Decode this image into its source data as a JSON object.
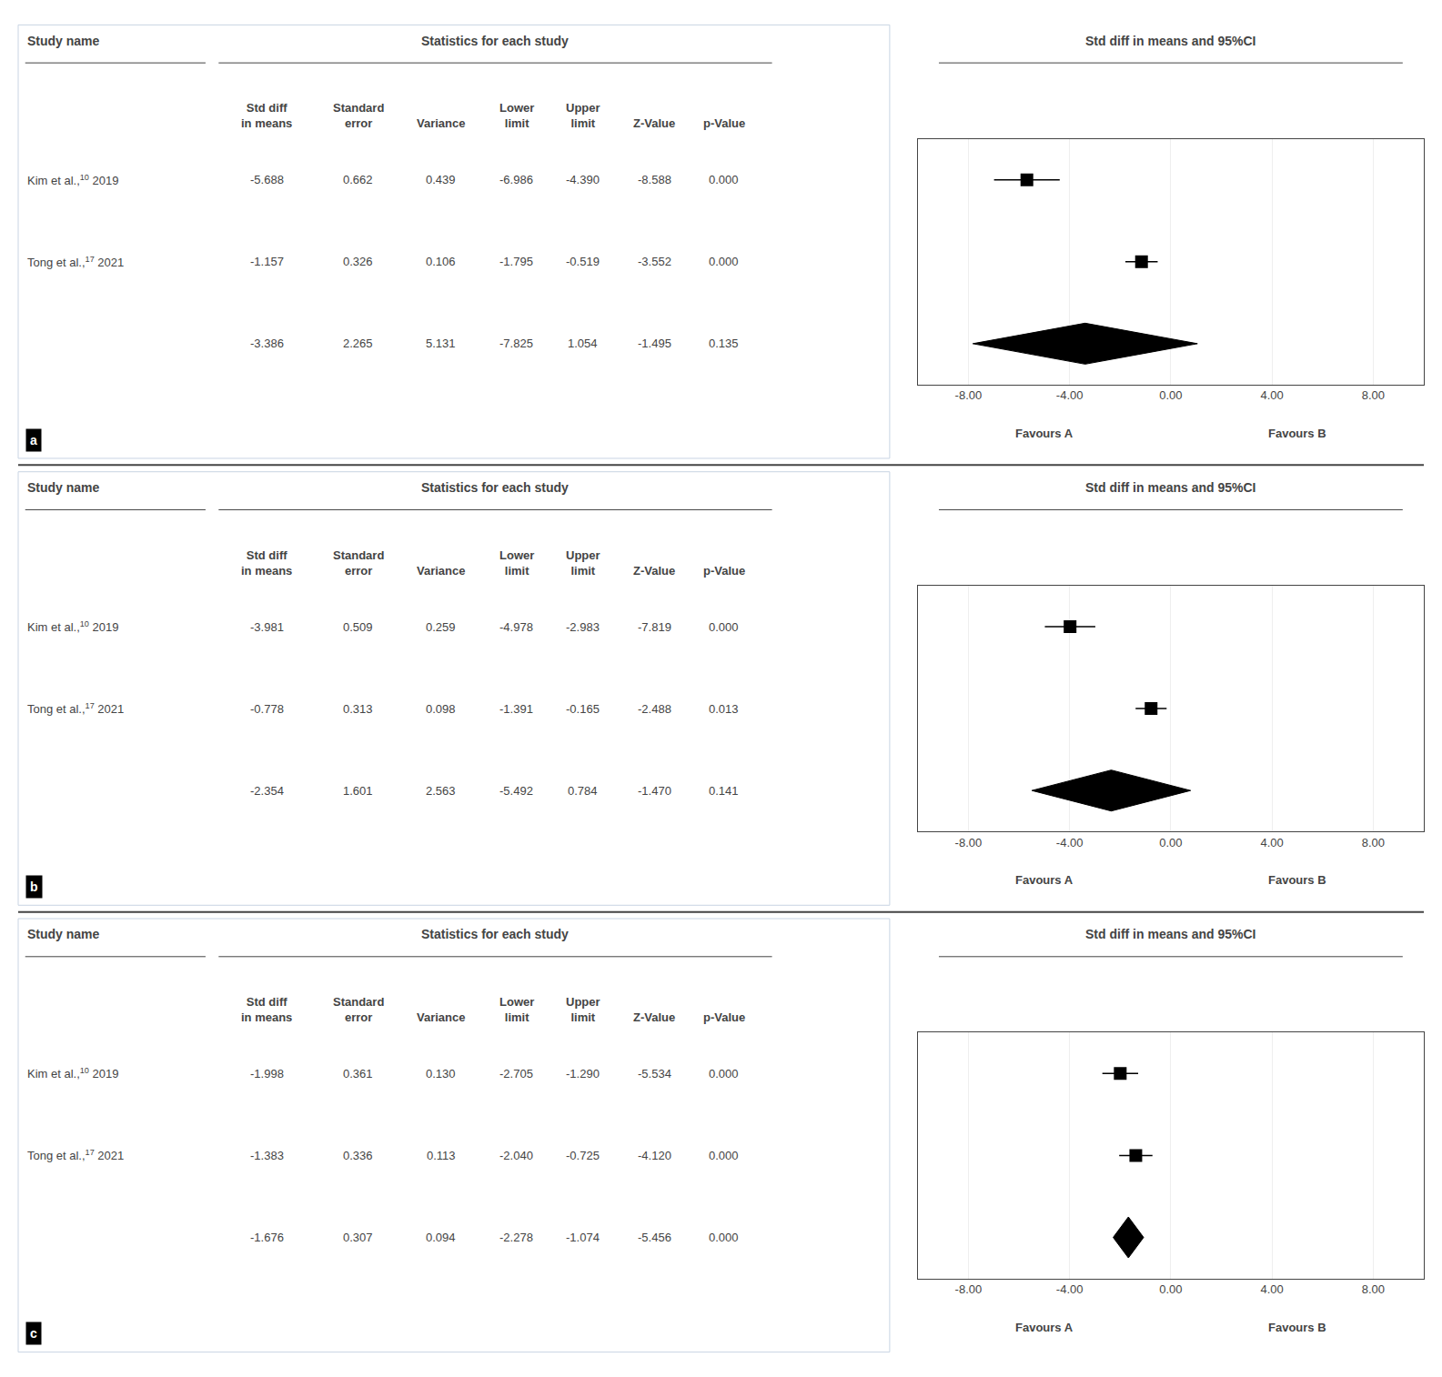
{
  "chart_data": [
    {
      "type": "forest",
      "label": "a",
      "title": "Std diff in means and 95%CI",
      "name_header": "Study name",
      "stats_header": "Statistics for each study",
      "column_headers": [
        [
          "Std diff",
          "in means"
        ],
        [
          "Standard",
          "error"
        ],
        [
          "Variance"
        ],
        [
          "Lower",
          "limit"
        ],
        [
          "Upper",
          "limit"
        ],
        [
          "Z-Value"
        ],
        [
          "p-Value"
        ]
      ],
      "rows": [
        {
          "type": "study",
          "name": "Kim et al.,",
          "sup": "10",
          "year": "2019",
          "std_diff": -5.688,
          "std_err": 0.662,
          "variance": 0.439,
          "lower": -6.986,
          "upper": -4.39,
          "z_value": -8.588,
          "p_value": 0.0
        },
        {
          "type": "study",
          "name": "Tong et al.,",
          "sup": "17",
          "year": "2021",
          "std_diff": -1.157,
          "std_err": 0.326,
          "variance": 0.106,
          "lower": -1.795,
          "upper": -0.519,
          "z_value": -3.552,
          "p_value": 0.0
        },
        {
          "type": "diamond",
          "std_diff": -3.386,
          "std_err": 2.265,
          "variance": 5.131,
          "lower": -7.825,
          "upper": 1.054,
          "z_value": -1.495,
          "p_value": 0.135
        }
      ],
      "annotations": [
        "Favours A",
        "Favours B"
      ],
      "xlim": [
        -10,
        10
      ],
      "xticks": [
        {
          "value": -8,
          "label": "-8.00"
        },
        {
          "value": -4,
          "label": "-4.00"
        },
        {
          "value": 0,
          "label": "0.00"
        },
        {
          "value": 4,
          "label": "4.00"
        },
        {
          "value": 8,
          "label": "8.00"
        }
      ],
      "grid": true,
      "color": "#000000"
    },
    {
      "type": "forest",
      "label": "b",
      "title": "Std diff in means and 95%CI",
      "name_header": "Study name",
      "stats_header": "Statistics for each study",
      "column_headers": [
        [
          "Std diff",
          "in means"
        ],
        [
          "Standard",
          "error"
        ],
        [
          "Variance"
        ],
        [
          "Lower",
          "limit"
        ],
        [
          "Upper",
          "limit"
        ],
        [
          "Z-Value"
        ],
        [
          "p-Value"
        ]
      ],
      "rows": [
        {
          "type": "study",
          "name": "Kim et al.,",
          "sup": "10",
          "year": "2019",
          "std_diff": -3.981,
          "std_err": 0.509,
          "variance": 0.259,
          "lower": -4.978,
          "upper": -2.983,
          "z_value": -7.819,
          "p_value": 0.0
        },
        {
          "type": "study",
          "name": "Tong et al.,",
          "sup": "17",
          "year": "2021",
          "std_diff": -0.778,
          "std_err": 0.313,
          "variance": 0.098,
          "lower": -1.391,
          "upper": -0.165,
          "z_value": -2.488,
          "p_value": 0.013
        },
        {
          "type": "diamond",
          "std_diff": -2.354,
          "std_err": 1.601,
          "variance": 2.563,
          "lower": -5.492,
          "upper": 0.784,
          "z_value": -1.47,
          "p_value": 0.141
        }
      ],
      "annotations": [
        "Favours A",
        "Favours B"
      ],
      "xlim": [
        -10,
        10
      ],
      "xticks": [
        {
          "value": -8,
          "label": "-8.00"
        },
        {
          "value": -4,
          "label": "-4.00"
        },
        {
          "value": 0,
          "label": "0.00"
        },
        {
          "value": 4,
          "label": "4.00"
        },
        {
          "value": 8,
          "label": "8.00"
        }
      ],
      "grid": true,
      "color": "#000000"
    },
    {
      "type": "forest",
      "label": "c",
      "title": "Std diff in means and 95%CI",
      "name_header": "Study name",
      "stats_header": "Statistics for each study",
      "column_headers": [
        [
          "Std diff",
          "in means"
        ],
        [
          "Standard",
          "error"
        ],
        [
          "Variance"
        ],
        [
          "Lower",
          "limit"
        ],
        [
          "Upper",
          "limit"
        ],
        [
          "Z-Value"
        ],
        [
          "p-Value"
        ]
      ],
      "rows": [
        {
          "type": "study",
          "name": "Kim et al.,",
          "sup": "10",
          "year": "2019",
          "std_diff": -1.998,
          "std_err": 0.361,
          "variance": 0.13,
          "lower": -2.705,
          "upper": -1.29,
          "z_value": -5.534,
          "p_value": 0.0
        },
        {
          "type": "study",
          "name": "Tong et al.,",
          "sup": "17",
          "year": "2021",
          "std_diff": -1.383,
          "std_err": 0.336,
          "variance": 0.113,
          "lower": -2.04,
          "upper": -0.725,
          "z_value": -4.12,
          "p_value": 0.0
        },
        {
          "type": "diamond",
          "std_diff": -1.676,
          "std_err": 0.307,
          "variance": 0.094,
          "lower": -2.278,
          "upper": -1.074,
          "z_value": -5.456,
          "p_value": 0.0
        }
      ],
      "annotations": [
        "Favours A",
        "Favours B"
      ],
      "xlim": [
        -10,
        10
      ],
      "xticks": [
        {
          "value": -8,
          "label": "-8.00"
        },
        {
          "value": -4,
          "label": "-4.00"
        },
        {
          "value": 0,
          "label": "0.00"
        },
        {
          "value": 4,
          "label": "4.00"
        },
        {
          "value": 8,
          "label": "8.00"
        }
      ],
      "grid": true,
      "color": "#000000"
    }
  ]
}
